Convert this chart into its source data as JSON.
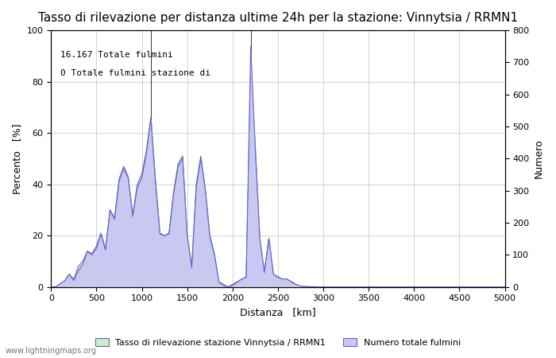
{
  "title": "Tasso di rilevazione per distanza ultime 24h per la stazione: Vinnytsia / RRMN1",
  "xlabel": "Distanza   [km]",
  "ylabel_left": "Percento   [%]",
  "ylabel_right": "Numero",
  "annotation_line1": "16.167 Totale fulmini",
  "annotation_line2": "0 Totale fulmini stazione di",
  "legend_label1": "Tasso di rilevazione stazione Vinnytsia / RRMN1",
  "legend_label2": "Numero totale fulmini",
  "watermark": "www.lightningmaps.org",
  "xlim": [
    0,
    5000
  ],
  "ylim_left": [
    0,
    100
  ],
  "ylim_right": [
    0,
    800
  ],
  "xticks": [
    0,
    500,
    1000,
    1500,
    2000,
    2500,
    3000,
    3500,
    4000,
    4500,
    5000
  ],
  "yticks_left": [
    0,
    20,
    40,
    60,
    80,
    100
  ],
  "yticks_right": [
    0,
    100,
    200,
    300,
    400,
    500,
    600,
    700,
    800
  ],
  "fill_color_detection": "#c8f0c8",
  "fill_color_total": "#c8c8f0",
  "line_color_detection": "#6464c8",
  "line_color_total": "#6464c8",
  "background_color": "#ffffff",
  "grid_color": "#aaaaaa",
  "title_fontsize": 11,
  "label_fontsize": 9,
  "tick_fontsize": 8,
  "detection_x": [
    0,
    50,
    100,
    150,
    200,
    250,
    300,
    350,
    400,
    450,
    500,
    550,
    600,
    650,
    700,
    750,
    800,
    850,
    900,
    950,
    1000,
    1050,
    1100,
    1150,
    1200,
    1250,
    1300,
    1350,
    1400,
    1450,
    1500,
    1550,
    1600,
    1650,
    1700,
    1750,
    1800,
    1850,
    1900,
    1950,
    2000,
    2050,
    2100,
    2150,
    2200,
    2250,
    2300,
    2350,
    2400,
    2450,
    2500,
    2550,
    2600,
    2650,
    2700,
    2750,
    2800,
    2850,
    2900,
    2950,
    3000,
    3100,
    3200,
    3300,
    3400,
    3500,
    3600,
    3700,
    3800,
    3900,
    4000,
    4500,
    5000
  ],
  "detection_y": [
    0,
    0,
    1,
    2,
    5,
    3,
    8,
    10,
    14,
    13,
    16,
    21,
    15,
    30,
    27,
    42,
    47,
    43,
    28,
    40,
    44,
    53,
    66,
    42,
    21,
    20,
    21,
    37,
    48,
    51,
    20,
    8,
    40,
    51,
    38,
    20,
    13,
    2,
    1,
    0,
    1,
    2,
    3,
    4,
    82,
    55,
    19,
    6,
    19,
    5,
    4,
    3,
    3,
    2,
    1,
    0,
    0,
    0,
    0,
    0,
    0,
    0,
    0,
    0,
    0,
    0,
    0,
    0,
    0,
    0,
    0,
    0,
    0
  ],
  "total_x": [
    0,
    50,
    100,
    150,
    200,
    250,
    300,
    350,
    400,
    450,
    500,
    550,
    600,
    650,
    700,
    750,
    800,
    850,
    900,
    950,
    1000,
    1050,
    1100,
    1150,
    1200,
    1250,
    1300,
    1350,
    1400,
    1450,
    1500,
    1550,
    1600,
    1650,
    1700,
    1750,
    1800,
    1850,
    1900,
    1950,
    2000,
    2050,
    2100,
    2150,
    2200,
    2250,
    2300,
    2350,
    2400,
    2450,
    2500,
    2550,
    2600,
    2650,
    2700,
    2750,
    2800,
    2850,
    2900,
    2950,
    3000,
    3100,
    3200,
    3300,
    3400,
    3500,
    3600,
    3700,
    3800,
    3900,
    4000,
    4500,
    5000
  ],
  "total_y": [
    0,
    0,
    10,
    20,
    40,
    20,
    50,
    70,
    110,
    100,
    120,
    165,
    115,
    240,
    210,
    330,
    370,
    340,
    220,
    310,
    340,
    415,
    525,
    325,
    165,
    160,
    165,
    290,
    375,
    400,
    160,
    60,
    310,
    400,
    300,
    155,
    100,
    15,
    5,
    0,
    5,
    15,
    25,
    30,
    750,
    430,
    150,
    45,
    150,
    40,
    30,
    25,
    25,
    15,
    8,
    3,
    2,
    1,
    1,
    0,
    0,
    0,
    0,
    0,
    0,
    0,
    0,
    0,
    0,
    0,
    0,
    0,
    0
  ]
}
